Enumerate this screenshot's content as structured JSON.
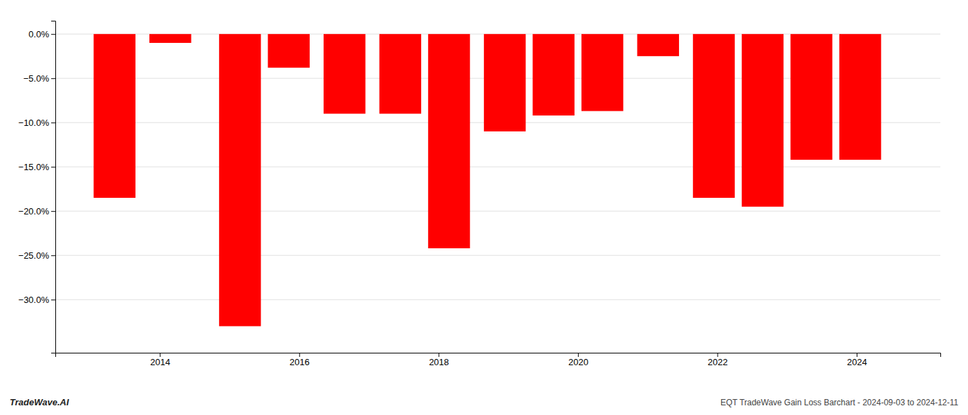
{
  "chart_data": {
    "type": "bar",
    "x": [
      2013.35,
      2014.15,
      2015.15,
      2015.85,
      2016.65,
      2017.45,
      2018.15,
      2018.95,
      2019.65,
      2020.35,
      2021.15,
      2021.95,
      2022.65,
      2023.35,
      2024.05
    ],
    "values": [
      -18.5,
      -1.0,
      -33.0,
      -3.8,
      -9.0,
      -9.0,
      -24.2,
      -11.0,
      -9.2,
      -8.7,
      -2.5,
      -18.5,
      -19.5,
      -14.2,
      -14.2
    ],
    "color": "#FF0000",
    "xlim": [
      2012.5,
      2025.2
    ],
    "xticks": [
      2014,
      2016,
      2018,
      2020,
      2022,
      2024
    ],
    "ylim": [
      -36,
      1.5
    ],
    "yticks": [
      {
        "value": 0,
        "label": "0.0%"
      },
      {
        "value": -5,
        "label": "−5.0%"
      },
      {
        "value": -10,
        "label": "−10.0%"
      },
      {
        "value": -15,
        "label": "−15.0%"
      },
      {
        "value": -20,
        "label": "−20.0%"
      },
      {
        "value": -25,
        "label": "−25.0%"
      },
      {
        "value": -30,
        "label": "−30.0%"
      }
    ],
    "grid": true,
    "annotations": [
      "TradeWave.AI",
      "EQT TradeWave Gain Loss Barchart - 2024-09-03 to 2024-12-11"
    ]
  }
}
